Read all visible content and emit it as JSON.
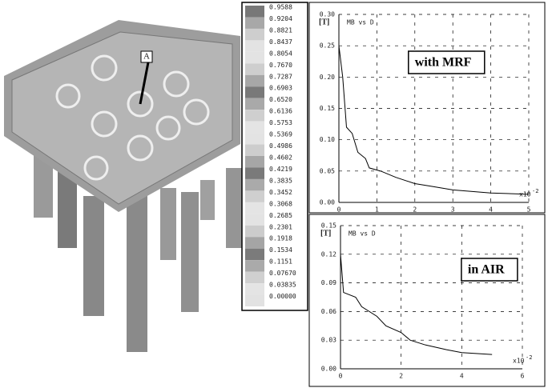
{
  "image": {
    "label": "A"
  },
  "colorbar": {
    "ticks": [
      0.9588,
      0.9204,
      0.8821,
      0.8437,
      0.8054,
      {
        "value": 0.767,
        "label": "0.7670"
      },
      0.7287,
      0.6903,
      {
        "value": 0.652,
        "label": "0.6520"
      },
      0.6136,
      0.5753,
      0.5369,
      0.4986,
      0.4602,
      0.4219,
      0.3835,
      0.3452,
      0.3068,
      0.2685,
      0.2301,
      0.1918,
      0.1534,
      0.1151,
      {
        "value": 0.0767,
        "label": "0.07670"
      },
      0.03835,
      {
        "value": 0,
        "label": "0.00000"
      }
    ]
  },
  "chart_data": [
    {
      "type": "line",
      "annotation": "with MRF",
      "ylabel": "[T]",
      "x_scale_label": "x10",
      "x_scale_exp": "-2",
      "x": [
        0,
        0.1,
        0.2,
        0.35,
        0.5,
        0.7,
        0.8,
        1.1,
        1.5,
        2,
        2.5,
        3,
        4,
        5
      ],
      "series": [
        {
          "name": "MB vs D",
          "color": "#000000",
          "values": [
            0.25,
            0.2,
            0.12,
            0.11,
            0.08,
            0.07,
            0.055,
            0.05,
            0.04,
            0.03,
            0.025,
            0.02,
            0.015,
            0.013
          ]
        }
      ],
      "xlim": [
        0,
        5
      ],
      "xticks": [
        0,
        1,
        2,
        3,
        4,
        5
      ],
      "ylim": [
        0,
        0.3
      ],
      "yticks": [
        {
          "value": 0,
          "label": "0.00"
        },
        0.05,
        {
          "value": 0.1,
          "label": "0.10"
        },
        0.15,
        {
          "value": 0.2,
          "label": "0.20"
        },
        0.25,
        {
          "value": 0.3,
          "label": "0.30"
        }
      ],
      "grid": true
    },
    {
      "type": "line",
      "annotation": "in AIR",
      "ylabel": "[T]",
      "x_scale_label": "x10",
      "x_scale_exp": "-2",
      "x": [
        0,
        0.1,
        0.5,
        0.7,
        1.2,
        1.5,
        2,
        2.3,
        2.8,
        3.5,
        4,
        5
      ],
      "series": [
        {
          "name": "MB vs D",
          "color": "#000000",
          "values": [
            0.12,
            0.08,
            0.075,
            0.065,
            0.055,
            0.045,
            0.038,
            0.03,
            0.025,
            0.02,
            0.017,
            0.015
          ]
        }
      ],
      "xlim": [
        0,
        6
      ],
      "xticks": [
        0,
        2,
        4,
        6
      ],
      "ylim": [
        0,
        0.15
      ],
      "yticks": [
        {
          "value": 0,
          "label": "0.00"
        },
        0.03,
        0.06,
        0.09,
        0.12,
        0.15
      ],
      "grid": true
    }
  ]
}
